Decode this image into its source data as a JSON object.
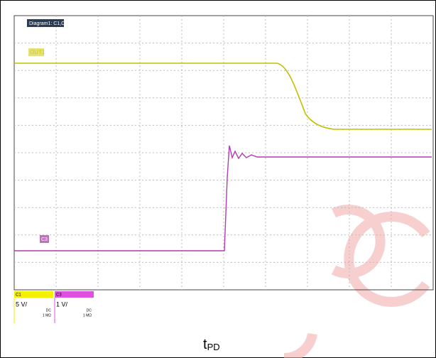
{
  "screen": {
    "tab": "Diagram1: C1,C3",
    "trace_labels": {
      "out": "OUT1",
      "ch3": "C3"
    },
    "channels": [
      {
        "name": "C1",
        "scale": "5 V/",
        "coupling": "DC",
        "impedance": "1 MΩ"
      },
      {
        "name": "C3",
        "scale": "1 V/",
        "coupling": "DC",
        "impedance": "1 MΩ"
      }
    ],
    "caption": {
      "main": "t",
      "sub": "PD"
    }
  }
}
